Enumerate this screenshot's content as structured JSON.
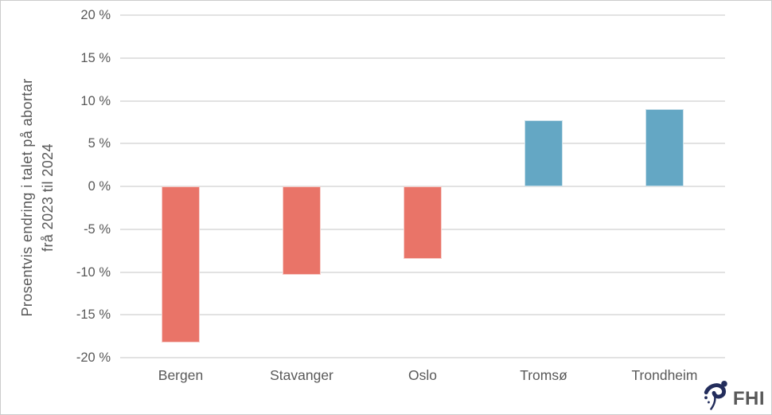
{
  "chart_data": {
    "type": "bar",
    "title": "",
    "ylabel_line1": "Prosentvis endring i talet på abortar",
    "ylabel_line2": "frå 2023 til 2024",
    "xlabel": "",
    "categories": [
      "Bergen",
      "Stavanger",
      "Oslo",
      "Tromsø",
      "Trondheim"
    ],
    "values": [
      -18.2,
      -10.3,
      -8.5,
      7.7,
      9.0
    ],
    "bar_colors": [
      "#e97468",
      "#e97468",
      "#e97468",
      "#64a7c4",
      "#64a7c4"
    ],
    "negative_color": "#e97468",
    "positive_color": "#64a7c4",
    "ylim": [
      -20,
      20
    ],
    "yticks": [
      20,
      15,
      10,
      5,
      0,
      -5,
      -10,
      -15,
      -20
    ],
    "ytick_labels": [
      "20 %",
      "15 %",
      "10 %",
      "5 %",
      "0 %",
      "-5 %",
      "-10 %",
      "-15 %",
      "-20 %"
    ],
    "grid": true,
    "gridline_color": "#e2e2e2",
    "text_color": "#595959",
    "legend": null
  },
  "branding": {
    "logo_text": "FHI",
    "logo_color": "#232d5c"
  }
}
